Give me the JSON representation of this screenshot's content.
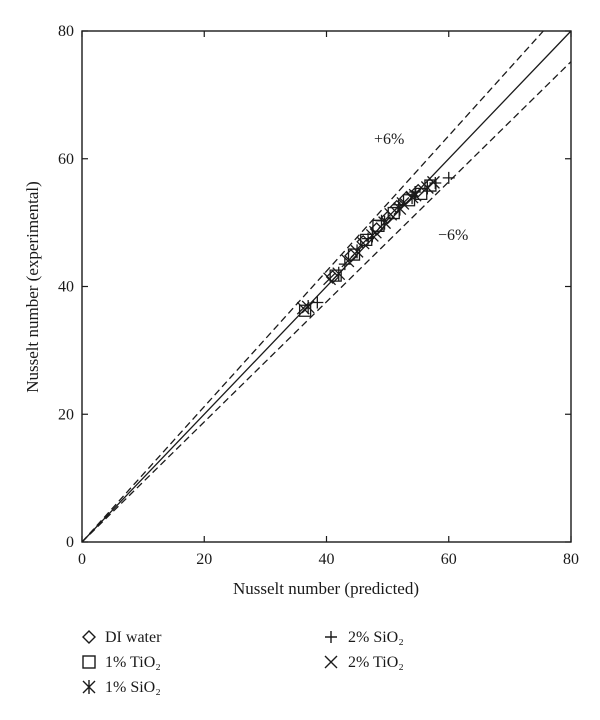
{
  "chart_data": {
    "type": "scatter",
    "title": "",
    "xlabel": "Nusselt number (predicted)",
    "ylabel": "Nusselt number (experimental)",
    "xlim": [
      0,
      80
    ],
    "ylim": [
      0,
      80
    ],
    "xticks": [
      "0",
      "20",
      "40",
      "60",
      "80"
    ],
    "yticks": [
      "0",
      "20",
      "40",
      "60",
      "80"
    ],
    "grid": false,
    "legend_placement": "bottom",
    "reference_lines": [
      {
        "type": "parity",
        "slope": 1.0,
        "style": "solid"
      },
      {
        "type": "deviation",
        "slope": 1.06,
        "style": "dashed",
        "label": "+6%"
      },
      {
        "type": "deviation",
        "slope": 0.94,
        "style": "dashed",
        "label": "−6%"
      }
    ],
    "series": [
      {
        "name": "DI water",
        "marker": "diamond",
        "points": [
          [
            41.0,
            41.5
          ],
          [
            44.0,
            44.8
          ],
          [
            46.0,
            47.0
          ],
          [
            48.2,
            49.0
          ],
          [
            50.0,
            50.8
          ],
          [
            51.5,
            52.5
          ],
          [
            53.0,
            53.8
          ],
          [
            55.0,
            55.0
          ]
        ]
      },
      {
        "name": "1% TiO₂",
        "marker": "square",
        "points": [
          [
            36.5,
            36.2
          ],
          [
            41.5,
            41.7
          ],
          [
            44.5,
            45.0
          ],
          [
            46.5,
            47.3
          ],
          [
            48.5,
            49.5
          ],
          [
            51.0,
            51.5
          ],
          [
            53.5,
            53.5
          ],
          [
            55.5,
            54.5
          ],
          [
            57.0,
            55.8
          ]
        ]
      },
      {
        "name": "1% SiO₂",
        "marker": "asterisk",
        "points": [
          [
            37.0,
            36.8
          ],
          [
            42.0,
            42.0
          ],
          [
            45.0,
            45.5
          ],
          [
            47.5,
            48.0
          ],
          [
            49.5,
            50.0
          ],
          [
            52.0,
            52.2
          ],
          [
            54.0,
            54.0
          ],
          [
            56.5,
            55.5
          ]
        ]
      },
      {
        "name": "2% SiO₂",
        "marker": "plus",
        "points": [
          [
            38.5,
            37.5
          ],
          [
            43.0,
            43.5
          ],
          [
            46.8,
            47.5
          ],
          [
            49.0,
            50.3
          ],
          [
            51.8,
            52.8
          ],
          [
            54.5,
            54.8
          ],
          [
            57.8,
            56.2
          ],
          [
            60.0,
            57.0
          ]
        ]
      },
      {
        "name": "2% TiO₂",
        "marker": "cross",
        "points": [
          [
            36.2,
            36.6
          ],
          [
            40.5,
            41.2
          ],
          [
            43.5,
            44.0
          ],
          [
            46.0,
            46.8
          ],
          [
            48.0,
            48.5
          ],
          [
            50.5,
            51.3
          ],
          [
            52.5,
            53.0
          ],
          [
            54.5,
            54.3
          ],
          [
            57.5,
            56.3
          ]
        ]
      }
    ],
    "annotations": [
      "+6%",
      "−6%"
    ]
  }
}
